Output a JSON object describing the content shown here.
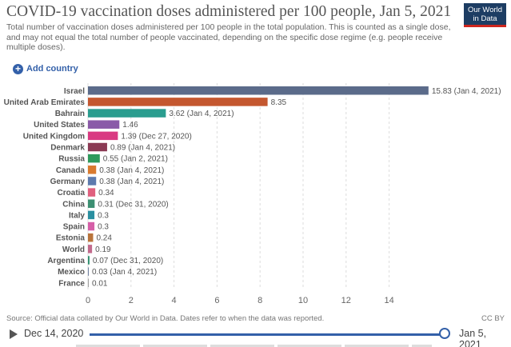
{
  "header": {
    "title": "COVID-19 vaccination doses administered per 100 people, Jan 5, 2021",
    "subtitle": "Total number of vaccination doses administered per 100 people in the total population. This is counted as a single dose, and may not equal the total number of people vaccinated, depending on the specific dose regime (e.g. people receive multiple doses).",
    "logo_line1": "Our World",
    "logo_line2": "in Data"
  },
  "controls": {
    "add_country_label": "Add country",
    "add_icon": "plus-circle-icon"
  },
  "chart_data": {
    "type": "bar",
    "orientation": "horizontal",
    "categories": [
      "Israel",
      "United Arab Emirates",
      "Bahrain",
      "United States",
      "United Kingdom",
      "Denmark",
      "Russia",
      "Canada",
      "Germany",
      "Croatia",
      "China",
      "Italy",
      "Spain",
      "Estonia",
      "World",
      "Argentina",
      "Mexico",
      "France"
    ],
    "values": [
      15.83,
      8.35,
      3.62,
      1.46,
      1.39,
      0.89,
      0.55,
      0.38,
      0.38,
      0.34,
      0.31,
      0.3,
      0.3,
      0.24,
      0.19,
      0.07,
      0.03,
      0.01
    ],
    "value_labels": [
      "15.83 (Jan 4, 2021)",
      "8.35",
      "3.62 (Jan 4, 2021)",
      "1.46",
      "1.39 (Dec 27, 2020)",
      "0.89 (Jan 4, 2021)",
      "0.55 (Jan 2, 2021)",
      "0.38 (Jan 4, 2021)",
      "0.38 (Jan 4, 2021)",
      "0.34",
      "0.31 (Dec 31, 2020)",
      "0.3",
      "0.3",
      "0.24",
      "0.19",
      "0.07 (Dec 31, 2020)",
      "0.03 (Jan 4, 2021)",
      "0.01"
    ],
    "colors": [
      "#5b6b8a",
      "#c4572f",
      "#2a9d8f",
      "#8a5aa8",
      "#d93a82",
      "#8b3a54",
      "#2e9a5c",
      "#d97a2e",
      "#5d7aad",
      "#e0607e",
      "#3c8f72",
      "#2a8fa0",
      "#d65fa8",
      "#b9743b",
      "#c26a8c",
      "#2f8f6e",
      "#6f7f9f",
      "#a0a0a0"
    ],
    "xlim": [
      0,
      16
    ],
    "xticks": [
      0,
      2,
      4,
      6,
      8,
      10,
      12,
      14
    ],
    "grid": true
  },
  "footer": {
    "source": "Source: Official data collated by Our World in Data. Dates refer to when the data was reported.",
    "license": "CC BY"
  },
  "timeline": {
    "start_label": "Dec 14, 2020",
    "end_label": "Jan 5, 2021",
    "position": 1.0
  }
}
